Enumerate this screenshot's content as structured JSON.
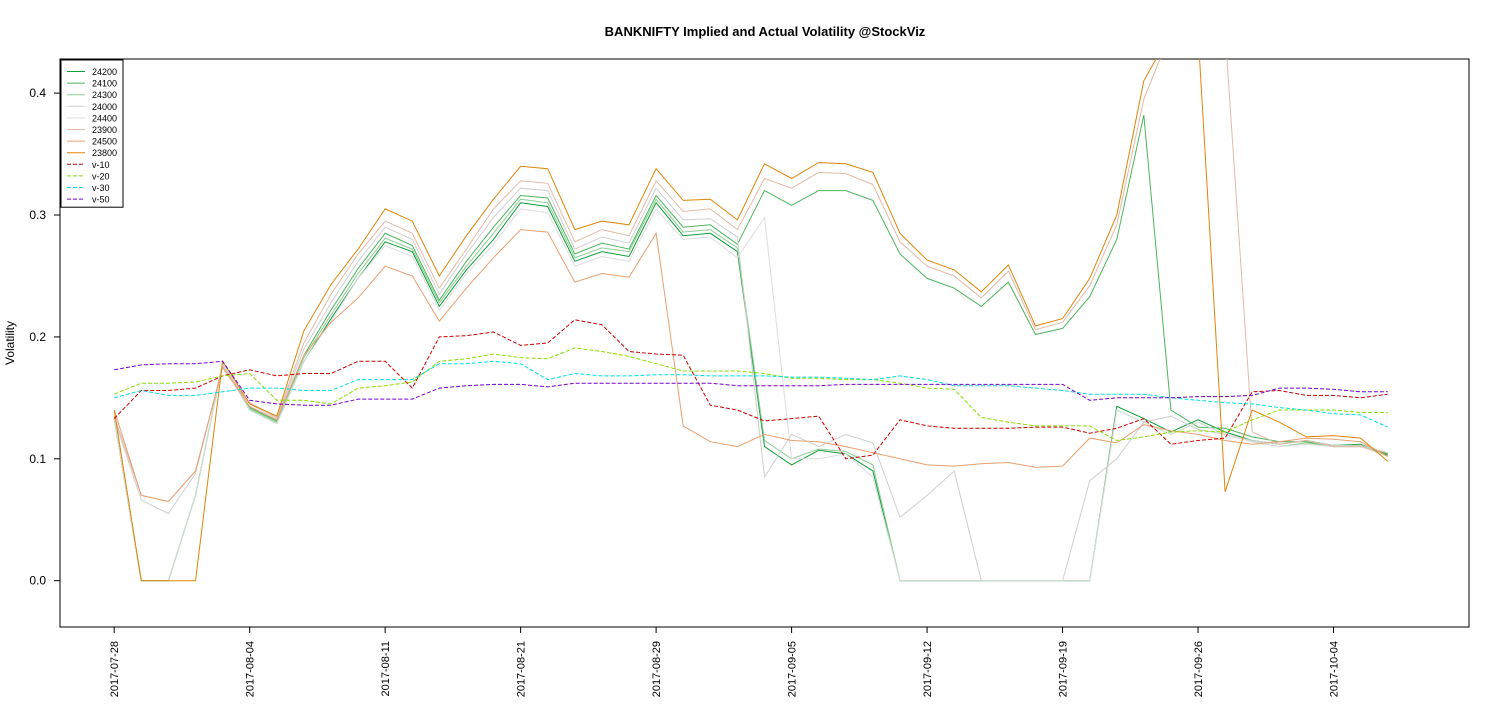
{
  "chart_data": {
    "type": "line",
    "title": "BANKNIFTY Implied and Actual Volatility @StockViz",
    "xlabel": "",
    "ylabel": "Volatility",
    "ylim": [
      -0.038,
      0.428
    ],
    "yticks": [
      0.0,
      0.1,
      0.2,
      0.3,
      0.4
    ],
    "ytick_labels": [
      "0.0",
      "0.1",
      "0.2",
      "0.3",
      "0.4"
    ],
    "xlim": [
      -2,
      50
    ],
    "xticks": [
      0,
      5,
      10,
      15,
      20,
      25,
      30,
      35,
      40,
      45
    ],
    "xtick_labels": [
      "2017-07-28",
      "2017-08-04",
      "2017-08-11",
      "2017-08-21",
      "2017-08-29",
      "2017-09-05",
      "2017-09-12",
      "2017-09-19",
      "2017-09-26",
      "2017-10-04"
    ],
    "x": [
      0,
      1,
      2,
      3,
      4,
      5,
      6,
      7,
      8,
      9,
      10,
      11,
      12,
      13,
      14,
      15,
      16,
      17,
      18,
      19,
      20,
      21,
      22,
      23,
      24,
      25,
      26,
      27,
      28,
      29,
      30,
      31,
      32,
      33,
      34,
      35,
      36,
      37,
      38,
      39,
      40,
      41,
      42,
      43,
      44,
      45,
      46,
      47
    ],
    "grid": false,
    "legend_position": "top-left",
    "series": [
      {
        "name": "24200",
        "color": "#109d3a",
        "dash": "solid",
        "values": [
          0.133,
          0.0,
          0.0,
          0.07,
          0.178,
          0.14,
          0.129,
          0.18,
          0.215,
          0.248,
          0.278,
          0.27,
          0.225,
          0.255,
          0.28,
          0.31,
          0.307,
          0.262,
          0.27,
          0.266,
          0.31,
          0.283,
          0.285,
          0.27,
          0.11,
          0.095,
          0.107,
          0.104,
          0.09,
          0.0,
          0.0,
          0.0,
          0.0,
          0.0,
          0.0,
          0.0,
          0.0,
          0.143,
          0.133,
          0.122,
          0.132,
          0.122,
          0.115,
          0.112,
          0.115,
          0.111,
          0.112,
          0.103
        ]
      },
      {
        "name": "24100",
        "color": "#4cb55c",
        "dash": "solid",
        "values": [
          0.133,
          0.0,
          0.0,
          0.07,
          0.178,
          0.142,
          0.131,
          0.185,
          0.222,
          0.256,
          0.285,
          0.275,
          0.23,
          0.262,
          0.29,
          0.316,
          0.314,
          0.268,
          0.277,
          0.272,
          0.316,
          0.29,
          0.292,
          0.276,
          0.32,
          0.308,
          0.32,
          0.32,
          0.312,
          0.268,
          0.248,
          0.24,
          0.225,
          0.245,
          0.202,
          0.207,
          0.233,
          0.28,
          0.382,
          0.14,
          0.126,
          0.125,
          0.118,
          0.114,
          0.114,
          0.11,
          0.11,
          0.104
        ]
      },
      {
        "name": "24300",
        "color": "#8ccf93",
        "dash": "solid",
        "values": [
          0.133,
          0.0,
          0.0,
          0.07,
          0.178,
          0.141,
          0.13,
          0.183,
          0.218,
          0.252,
          0.281,
          0.272,
          0.228,
          0.258,
          0.285,
          0.313,
          0.31,
          0.265,
          0.273,
          0.27,
          0.313,
          0.286,
          0.288,
          0.273,
          0.115,
          0.1,
          0.108,
          0.106,
          0.095,
          0.0,
          0.0,
          0.0,
          0.0,
          0.0,
          0.0,
          0.0,
          0.0,
          0.14,
          0.13,
          0.12,
          0.13,
          0.12,
          0.114,
          0.11,
          0.113,
          0.11,
          0.111,
          0.102
        ]
      },
      {
        "name": "24000",
        "color": "#cfcfcf",
        "dash": "solid",
        "values": [
          0.133,
          0.066,
          0.055,
          0.088,
          0.176,
          0.145,
          0.133,
          0.19,
          0.228,
          0.262,
          0.29,
          0.28,
          0.235,
          0.268,
          0.298,
          0.322,
          0.32,
          0.272,
          0.282,
          0.277,
          0.322,
          0.296,
          0.297,
          0.282,
          0.085,
          0.12,
          0.11,
          0.12,
          0.113,
          0.052,
          0.07,
          0.09,
          0.0,
          0.0,
          0.0,
          0.0,
          0.082,
          0.1,
          0.13,
          0.135,
          0.124,
          0.12,
          0.115,
          0.112,
          0.115,
          0.111,
          0.111,
          0.105
        ]
      },
      {
        "name": "24400",
        "color": "#dddddd",
        "dash": "solid",
        "values": [
          0.133,
          0.0,
          0.0,
          0.07,
          0.178,
          0.14,
          0.129,
          0.18,
          0.213,
          0.248,
          0.275,
          0.266,
          0.222,
          0.252,
          0.276,
          0.305,
          0.302,
          0.258,
          0.266,
          0.262,
          0.305,
          0.28,
          0.282,
          0.265,
          0.298,
          0.1,
          0.1,
          0.104,
          0.085,
          0.0,
          0.0,
          0.0,
          0.0,
          0.0,
          0.0,
          0.0,
          0.0,
          0.14,
          0.13,
          0.12,
          0.13,
          0.12,
          0.114,
          0.11,
          0.112,
          0.11,
          0.11,
          0.102
        ]
      },
      {
        "name": "23900",
        "color": "#e2baa6",
        "dash": "solid",
        "values": [
          0.135,
          0.07,
          0.065,
          0.09,
          0.175,
          0.146,
          0.134,
          0.195,
          0.235,
          0.268,
          0.295,
          0.285,
          0.24,
          0.272,
          0.305,
          0.328,
          0.326,
          0.278,
          0.288,
          0.283,
          0.328,
          0.303,
          0.305,
          0.288,
          0.33,
          0.322,
          0.335,
          0.334,
          0.325,
          0.278,
          0.258,
          0.25,
          0.232,
          0.254,
          0.206,
          0.212,
          0.242,
          0.292,
          0.395,
          0.45,
          0.45,
          0.45,
          0.122,
          0.112,
          0.115,
          0.11,
          0.11,
          0.105
        ]
      },
      {
        "name": "24500",
        "color": "#e9a070",
        "dash": "solid",
        "values": [
          0.14,
          0.07,
          0.065,
          0.09,
          0.175,
          0.143,
          0.132,
          0.185,
          0.212,
          0.232,
          0.258,
          0.25,
          0.213,
          0.24,
          0.265,
          0.288,
          0.286,
          0.245,
          0.252,
          0.249,
          0.285,
          0.127,
          0.114,
          0.11,
          0.12,
          0.115,
          0.114,
          0.11,
          0.105,
          0.1,
          0.095,
          0.094,
          0.096,
          0.097,
          0.093,
          0.094,
          0.117,
          0.113,
          0.128,
          0.123,
          0.12,
          0.115,
          0.112,
          0.114,
          0.117,
          0.116,
          0.114,
          0.102
        ]
      },
      {
        "name": "23800",
        "color": "#e0850a",
        "dash": "solid",
        "values": [
          0.14,
          0.0,
          0.0,
          0.0,
          0.18,
          0.145,
          0.135,
          0.205,
          0.243,
          0.272,
          0.305,
          0.295,
          0.25,
          0.283,
          0.313,
          0.34,
          0.338,
          0.288,
          0.295,
          0.292,
          0.338,
          0.312,
          0.313,
          0.296,
          0.342,
          0.33,
          0.343,
          0.342,
          0.335,
          0.285,
          0.263,
          0.255,
          0.237,
          0.259,
          0.209,
          0.215,
          0.248,
          0.3,
          0.41,
          0.45,
          0.45,
          0.073,
          0.14,
          0.13,
          0.118,
          0.119,
          0.117,
          0.098
        ]
      },
      {
        "name": "v-10",
        "color": "#cc0000",
        "dash": "dash",
        "values": [
          0.133,
          0.156,
          0.156,
          0.158,
          0.168,
          0.173,
          0.168,
          0.17,
          0.17,
          0.18,
          0.18,
          0.158,
          0.2,
          0.201,
          0.204,
          0.193,
          0.195,
          0.214,
          0.21,
          0.188,
          0.186,
          0.185,
          0.144,
          0.14,
          0.131,
          0.133,
          0.135,
          0.1,
          0.103,
          0.132,
          0.127,
          0.125,
          0.125,
          0.125,
          0.126,
          0.126,
          0.121,
          0.125,
          0.133,
          0.112,
          0.115,
          0.117,
          0.155,
          0.156,
          0.152,
          0.152,
          0.15,
          0.153
        ]
      },
      {
        "name": "v-20",
        "color": "#88dd00",
        "dash": "dash",
        "values": [
          0.153,
          0.162,
          0.162,
          0.163,
          0.168,
          0.17,
          0.148,
          0.148,
          0.145,
          0.158,
          0.16,
          0.163,
          0.18,
          0.182,
          0.186,
          0.183,
          0.182,
          0.191,
          0.188,
          0.184,
          0.178,
          0.172,
          0.172,
          0.172,
          0.17,
          0.166,
          0.166,
          0.165,
          0.165,
          0.162,
          0.158,
          0.157,
          0.134,
          0.13,
          0.127,
          0.127,
          0.127,
          0.115,
          0.118,
          0.122,
          0.123,
          0.122,
          0.132,
          0.14,
          0.14,
          0.14,
          0.138,
          0.138
        ]
      },
      {
        "name": "v-30",
        "color": "#00dddd",
        "dash": "dash",
        "values": [
          0.15,
          0.156,
          0.152,
          0.152,
          0.155,
          0.158,
          0.158,
          0.156,
          0.156,
          0.165,
          0.165,
          0.165,
          0.178,
          0.178,
          0.18,
          0.178,
          0.165,
          0.17,
          0.168,
          0.168,
          0.169,
          0.169,
          0.168,
          0.168,
          0.168,
          0.167,
          0.167,
          0.166,
          0.165,
          0.168,
          0.165,
          0.16,
          0.16,
          0.16,
          0.158,
          0.156,
          0.153,
          0.153,
          0.153,
          0.15,
          0.148,
          0.146,
          0.145,
          0.142,
          0.14,
          0.137,
          0.136,
          0.126
        ]
      },
      {
        "name": "v-50",
        "color": "#7700cc",
        "dash": "dash",
        "values": [
          0.173,
          0.177,
          0.178,
          0.178,
          0.18,
          0.148,
          0.145,
          0.144,
          0.144,
          0.149,
          0.149,
          0.149,
          0.158,
          0.16,
          0.161,
          0.161,
          0.159,
          0.162,
          0.162,
          0.162,
          0.162,
          0.162,
          0.162,
          0.16,
          0.16,
          0.16,
          0.16,
          0.161,
          0.161,
          0.161,
          0.161,
          0.161,
          0.161,
          0.161,
          0.161,
          0.161,
          0.148,
          0.15,
          0.15,
          0.15,
          0.151,
          0.151,
          0.152,
          0.158,
          0.158,
          0.157,
          0.155,
          0.155
        ]
      }
    ]
  }
}
